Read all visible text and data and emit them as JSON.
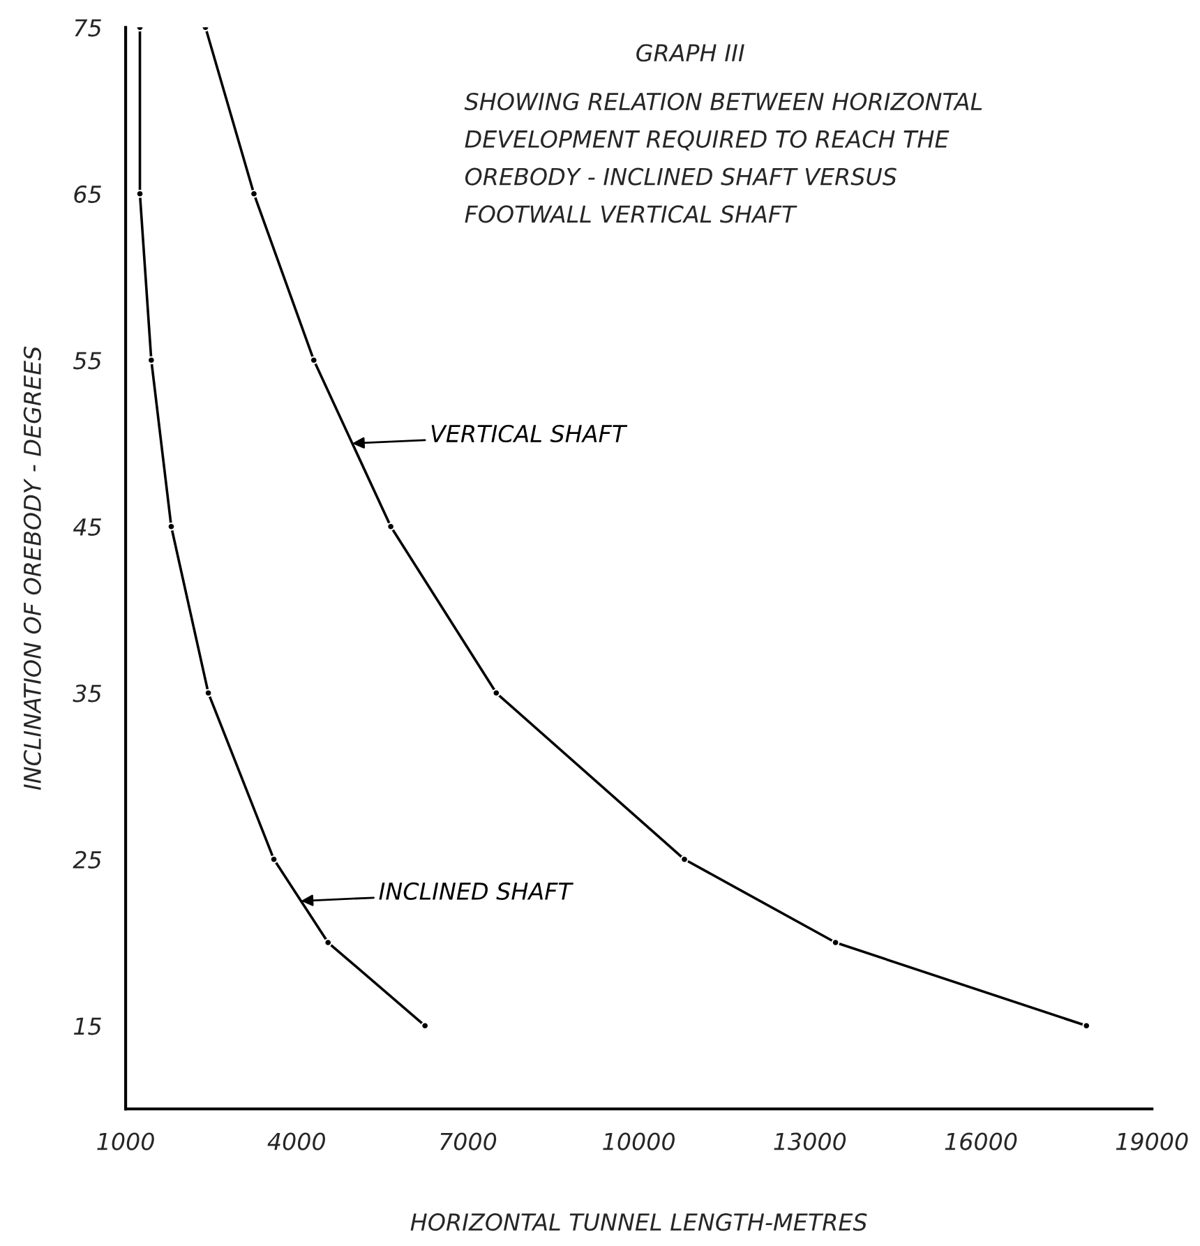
{
  "chart_data": {
    "type": "line",
    "title": "GRAPH III",
    "subtitle": "SHOWING RELATION BETWEEN HORIZONTAL\nDEVELOPMENT REQUIRED TO REACH THE\nOREBODY - INCLINED SHAFT VERSUS\nFOOTWALL VERTICAL SHAFT",
    "xlabel": "HORIZONTAL TUNNEL LENGTH-METRES",
    "ylabel": "INCLINATION OF OREBODY - DEGREES",
    "series": [
      {
        "name": "INCLINED SHAFT",
        "color": "#000000",
        "x": [
          1250,
          1250,
          1450,
          1800,
          2450,
          3600,
          4550,
          6250
        ],
        "values": [
          75,
          65,
          55,
          45,
          35,
          25,
          20,
          15
        ]
      },
      {
        "name": "VERTICAL SHAFT",
        "color": "#000000",
        "x": [
          2400,
          3250,
          4300,
          5650,
          7500,
          10800,
          13450,
          17850
        ],
        "values": [
          75,
          65,
          55,
          45,
          35,
          25,
          20,
          15
        ]
      }
    ],
    "xlim": [
      1000,
      19000
    ],
    "xticks": [
      1000,
      4000,
      7000,
      10000,
      13000,
      16000,
      19000
    ],
    "ylim": [
      10,
      75
    ],
    "yticks": [
      15,
      25,
      35,
      45,
      55,
      65,
      75
    ],
    "marker": "circle",
    "line_style": "solid",
    "grid": false,
    "legend": "center"
  }
}
